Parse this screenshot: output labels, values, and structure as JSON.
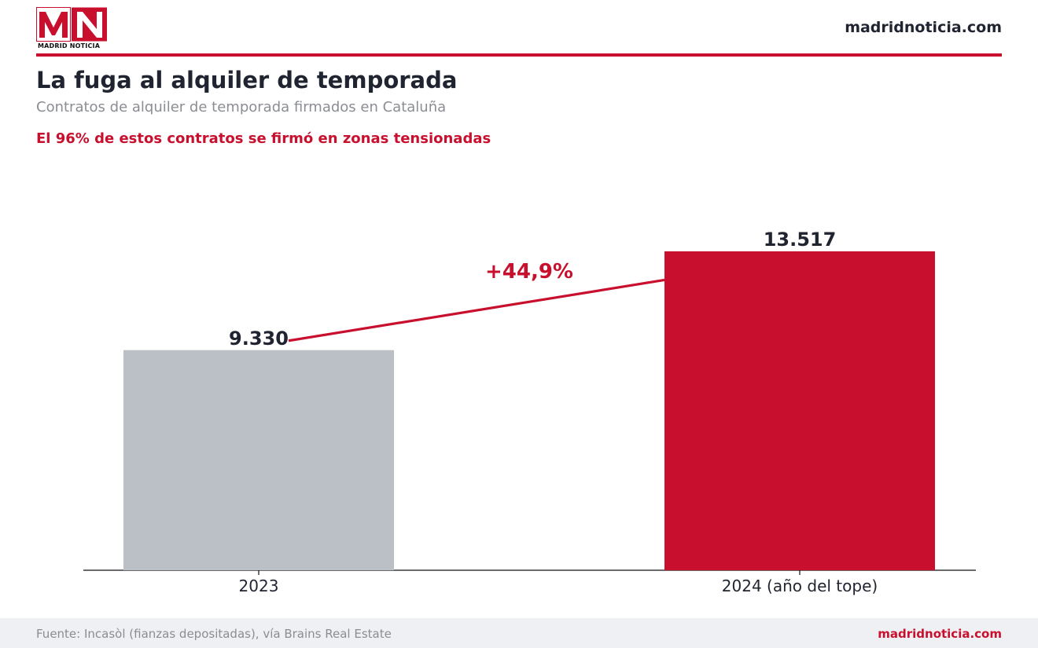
{
  "header": {
    "logo_caption": "MADRID NOTICIA",
    "site": "madridnoticia.com"
  },
  "title": "La fuga al alquiler de temporada",
  "subtitle": "Contratos de alquiler de temporada firmados en Cataluña",
  "highlight": "El 96% de estos contratos se firmó en zonas tensionadas",
  "chart_data": {
    "type": "bar",
    "categories": [
      "2023",
      "2024 (año del tope)"
    ],
    "values": [
      9330,
      13517
    ],
    "value_labels": [
      "9.330",
      "13.517"
    ],
    "bar_colors": [
      "#bbbfc6",
      "#c8102e"
    ],
    "ylim": [
      0,
      15000
    ],
    "annotation": "+44,9%",
    "annotation_color": "#c8102e",
    "grid": false,
    "xlabel": "",
    "ylabel": ""
  },
  "footer": {
    "source": "Fuente: Incasòl (fianzas depositadas), vía Brains Real Estate",
    "site": "madridnoticia.com"
  },
  "colors": {
    "accent": "#c8102e",
    "text": "#1f2430",
    "muted": "#8a8d93"
  }
}
